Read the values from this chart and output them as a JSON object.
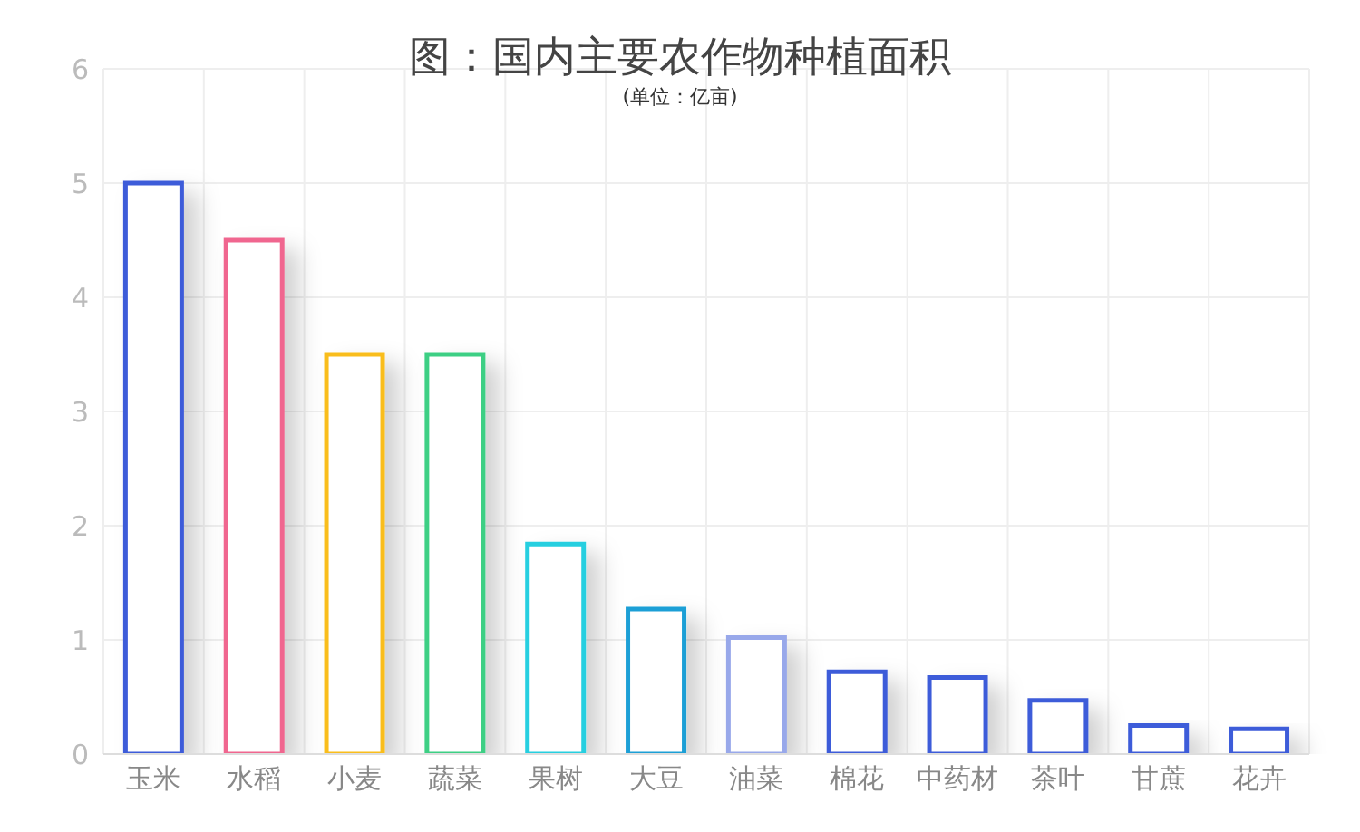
{
  "chart_data": {
    "type": "bar",
    "title": "图：国内主要农作物种植面积",
    "subtitle": "(单位：亿亩)",
    "categories": [
      "玉米",
      "水稻",
      "小麦",
      "蔬菜",
      "果树",
      "大豆",
      "油菜",
      "棉花",
      "中药材",
      "茶叶",
      "甘蔗",
      "花卉"
    ],
    "values": [
      5.0,
      4.5,
      3.5,
      3.5,
      1.84,
      1.27,
      1.02,
      0.72,
      0.67,
      0.47,
      0.25,
      0.22
    ],
    "colors": [
      "#3d5bd9",
      "#f0668f",
      "#f9bd1c",
      "#3ccf84",
      "#27cfe0",
      "#1d9fd6",
      "#98a8ea",
      "#3d5bd9",
      "#3d5bd9",
      "#3d5bd9",
      "#3d5bd9",
      "#3d5bd9"
    ],
    "ylim": [
      0,
      6
    ],
    "yticks": [
      0,
      1,
      2,
      3,
      4,
      5,
      6
    ],
    "grid": true
  }
}
